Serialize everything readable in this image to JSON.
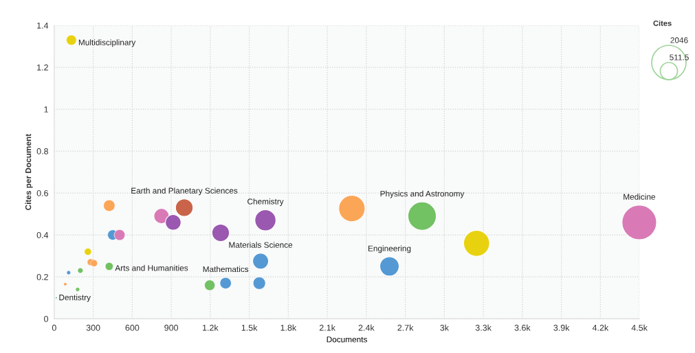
{
  "chart_data": {
    "type": "bubble",
    "xlabel": "Documents",
    "ylabel": "Cites per Document",
    "legend_title": "Cites",
    "x": [
      132,
      16,
      423,
      825,
      915,
      1000,
      1280,
      1624,
      450,
      503,
      259,
      280,
      306,
      423,
      111,
      201,
      85,
      180,
      1196,
      1318,
      1577,
      1587,
      2289,
      2829,
      2578,
      3248,
      4499
    ],
    "values": [
      1.33,
      0.1,
      0.54,
      0.49,
      0.46,
      0.53,
      0.41,
      0.47,
      0.4,
      0.4,
      0.32,
      0.27,
      0.265,
      0.25,
      0.22,
      0.23,
      0.165,
      0.14,
      0.16,
      0.17,
      0.17,
      0.275,
      0.526,
      0.49,
      0.25,
      0.36,
      0.46
    ],
    "sizes": [
      176,
      2,
      228,
      404,
      421,
      530,
      525,
      763,
      180,
      201,
      83,
      76,
      81,
      106,
      24,
      46,
      14,
      25,
      191,
      224,
      268,
      436,
      1204,
      1386,
      645,
      1169,
      2070
    ],
    "colors": [
      "#e8d210",
      "#2a9a5a",
      "#fba657",
      "#d97ab7",
      "#9a58b0",
      "#c9644a",
      "#9a58b0",
      "#9a58b0",
      "#5499d4",
      "#d97ab7",
      "#e8d210",
      "#fba657",
      "#fba657",
      "#72c163",
      "#5499d4",
      "#72c163",
      "#fba657",
      "#72c163",
      "#72c163",
      "#5499d4",
      "#5499d4",
      "#5499d4",
      "#fba657",
      "#72c163",
      "#5499d4",
      "#e8d210",
      "#d97ab7"
    ],
    "size_legend": [
      2046,
      511.5
    ],
    "annotations": [
      {
        "text": "Multidisciplinary",
        "x": 132,
        "y": 1.33
      },
      {
        "text": "Dentistry",
        "x": 16,
        "y": 0.1
      },
      {
        "text": "Arts and Humanities",
        "x": 423,
        "y": 0.25
      },
      {
        "text": "Earth and Planetary Sciences",
        "x": 1000,
        "y": 0.53
      },
      {
        "text": "Chemistry",
        "x": 1624,
        "y": 0.47
      },
      {
        "text": "Materials Science",
        "x": 1587,
        "y": 0.275
      },
      {
        "text": "Mathematics",
        "x": 1318,
        "y": 0.17
      },
      {
        "text": "Physics and Astronomy",
        "x": 2829,
        "y": 0.49
      },
      {
        "text": "Engineering",
        "x": 2578,
        "y": 0.25
      },
      {
        "text": "Medicine",
        "x": 4499,
        "y": 0.46
      }
    ],
    "xlim": [
      0,
      4500
    ],
    "ylim": [
      0,
      1.4
    ],
    "xticks": [
      0,
      300,
      600,
      900,
      {
        "value": 1200,
        "label": "1.2k"
      },
      {
        "value": 1500,
        "label": "1.5k"
      },
      {
        "value": 1800,
        "label": "1.8k"
      },
      {
        "value": 2100,
        "label": "2.1k"
      },
      {
        "value": 2400,
        "label": "2.4k"
      },
      {
        "value": 2700,
        "label": "2.7k"
      },
      {
        "value": 3000,
        "label": "3k"
      },
      {
        "value": 3300,
        "label": "3.3k"
      },
      {
        "value": 3600,
        "label": "3.6k"
      },
      {
        "value": 3900,
        "label": "3.9k"
      },
      {
        "value": 4200,
        "label": "4.2k"
      },
      {
        "value": 4500,
        "label": "4.5k"
      }
    ],
    "yticks": [
      0,
      0.2,
      0.4,
      0.6,
      0.8,
      1,
      1.2,
      1.4
    ],
    "grid": true
  }
}
